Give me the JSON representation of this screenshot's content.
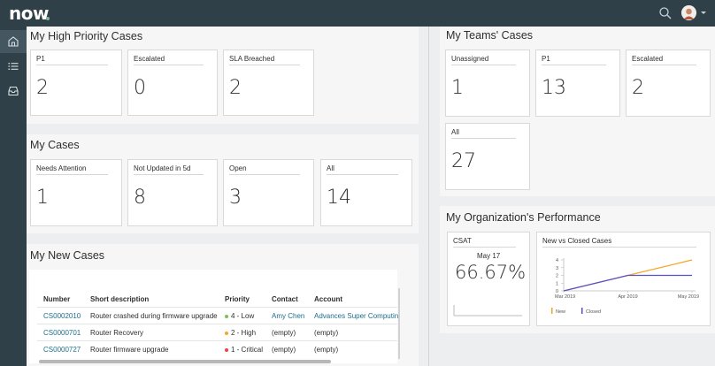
{
  "app": {
    "logo_text": "now"
  },
  "sidebar": {
    "items": [
      {
        "name": "home",
        "icon": "home-icon"
      },
      {
        "name": "list",
        "icon": "list-icon"
      },
      {
        "name": "inbox",
        "icon": "inbox-icon"
      }
    ]
  },
  "high_priority": {
    "title": "My High Priority Cases",
    "cards": [
      {
        "label": "P1",
        "value": "2"
      },
      {
        "label": "Escalated",
        "value": "0"
      },
      {
        "label": "SLA Breached",
        "value": "2"
      }
    ]
  },
  "my_cases": {
    "title": "My Cases",
    "cards": [
      {
        "label": "Needs Attention",
        "value": "1"
      },
      {
        "label": "Not Updated in 5d",
        "value": "8"
      },
      {
        "label": "Open",
        "value": "3"
      },
      {
        "label": "All",
        "value": "14"
      }
    ]
  },
  "new_cases": {
    "title": "My New Cases",
    "headers": [
      "Number",
      "Short description",
      "Priority",
      "Contact",
      "Account"
    ],
    "rows": [
      {
        "number": "CS0002010",
        "desc": "Router crashed during firmware upgrade",
        "priority": "4 - Low",
        "priority_color": "#7ac05c",
        "contact": "Amy Chen",
        "account": "Advances Super Computing"
      },
      {
        "number": "CS0000701",
        "desc": "Router Recovery",
        "priority": "2 - High",
        "priority_color": "#f5a623",
        "contact": "(empty)",
        "account": "(empty)"
      },
      {
        "number": "CS0000727",
        "desc": "Router firmware upgrade",
        "priority": "1 - Critical",
        "priority_color": "#e8453c",
        "contact": "(empty)",
        "account": "(empty)"
      }
    ]
  },
  "teams_cases": {
    "title": "My Teams' Cases",
    "cards": [
      {
        "label": "Unassigned",
        "value": "1"
      },
      {
        "label": "P1",
        "value": "13"
      },
      {
        "label": "Escalated",
        "value": "2"
      },
      {
        "label": "All",
        "value": "27"
      }
    ]
  },
  "org_performance": {
    "title": "My Organization's Performance",
    "csat": {
      "label": "CSAT",
      "date": "May 17",
      "value": "66.67%"
    },
    "chart_title": "New vs Closed Cases",
    "chart_data": {
      "type": "line",
      "title": "New vs Closed Cases",
      "categories": [
        "Mar 2019",
        "Apr 2019",
        "May 2019"
      ],
      "ylim": [
        0,
        4
      ],
      "yticks": [
        "0",
        "1",
        "2",
        "3",
        "4"
      ],
      "series": [
        {
          "name": "New",
          "color": "#f5a623",
          "values": [
            0,
            2,
            4
          ]
        },
        {
          "name": "Closed",
          "color": "#5a4fcf",
          "values": [
            0,
            2,
            2
          ]
        }
      ],
      "legend": "bottom"
    }
  }
}
